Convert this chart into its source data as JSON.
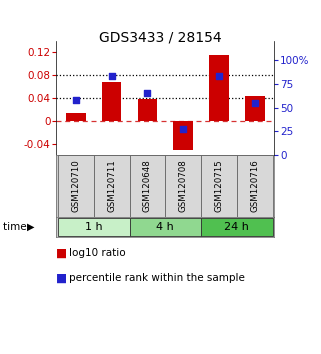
{
  "title": "GDS3433 / 28154",
  "samples": [
    "GSM120710",
    "GSM120711",
    "GSM120648",
    "GSM120708",
    "GSM120715",
    "GSM120716"
  ],
  "log10_ratio": [
    0.014,
    0.068,
    0.038,
    -0.05,
    0.115,
    0.043
  ],
  "percentile_rank": [
    58,
    83,
    65,
    28,
    83,
    55
  ],
  "time_groups": [
    {
      "label": "1 h",
      "start": 0,
      "end": 2,
      "color": "#c8f0c8"
    },
    {
      "label": "4 h",
      "start": 2,
      "end": 4,
      "color": "#90d890"
    },
    {
      "label": "24 h",
      "start": 4,
      "end": 6,
      "color": "#50c050"
    }
  ],
  "bar_color": "#cc0000",
  "dot_color": "#2222cc",
  "left_ylim": [
    -0.06,
    0.14
  ],
  "right_ylim": [
    0,
    120
  ],
  "left_yticks": [
    -0.04,
    0.0,
    0.04,
    0.08,
    0.12
  ],
  "right_yticks": [
    0,
    25,
    50,
    75,
    100
  ],
  "right_yticklabels": [
    "0",
    "25",
    "50",
    "75",
    "100%"
  ],
  "hline_dotted": [
    0.04,
    0.08
  ],
  "hline_dashed": 0.0,
  "bg_color": "#ffffff",
  "plot_bg": "#ffffff",
  "title_fontsize": 10,
  "tick_fontsize": 7.5,
  "legend_fontsize": 7.5
}
